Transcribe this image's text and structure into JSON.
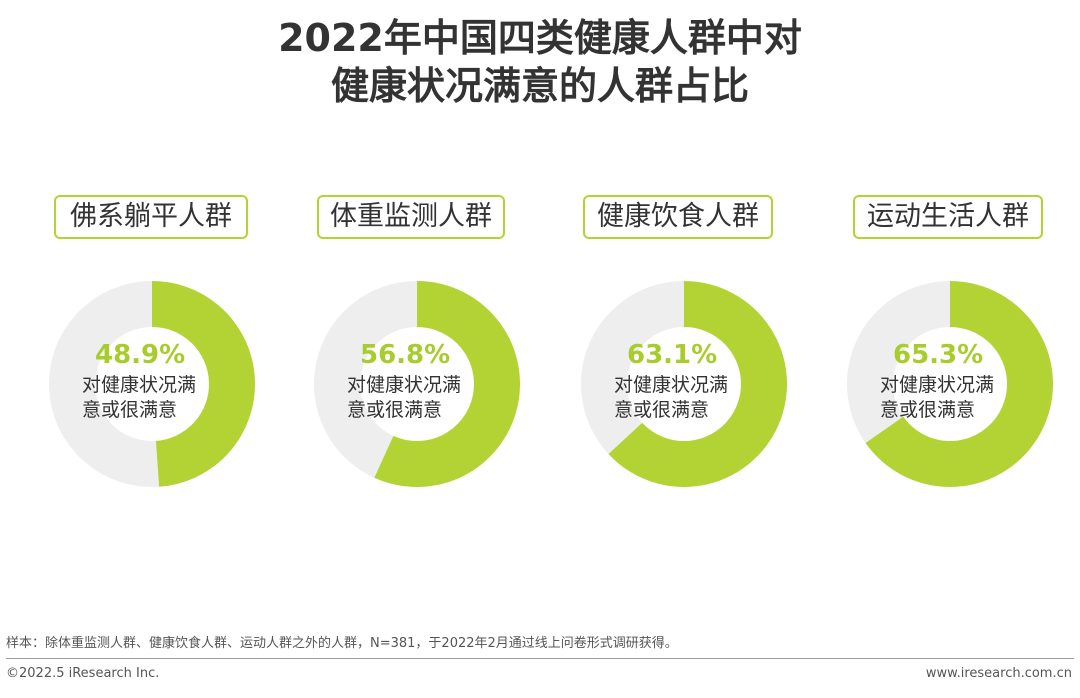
{
  "title": {
    "line1": "2022年中国四类健康人群中对",
    "line2": "健康状况满意的人群占比"
  },
  "chart_data": {
    "type": "pie",
    "subtype": "donut",
    "title": "2022年中国四类健康人群中对健康状况满意的人群占比",
    "value_caption": "对健康状况满意或很满意",
    "value_caption_lines": [
      "对健康状况满",
      "意或很满意"
    ],
    "colors": {
      "filled": "#b3d334",
      "remainder": "#eeeeee",
      "label_accent": "#a8cc2c",
      "label_border": "#b3d334"
    },
    "groups": [
      {
        "name": "佛系躺平人群",
        "value": 48.9,
        "value_label": "48.9%"
      },
      {
        "name": "体重监测人群",
        "value": 56.8,
        "value_label": "56.8%"
      },
      {
        "name": "健康饮食人群",
        "value": 63.1,
        "value_label": "63.1%"
      },
      {
        "name": "运动生活人群",
        "value": 65.3,
        "value_label": "65.3%"
      }
    ]
  },
  "note": "样本：除体重监测人群、健康饮食人群、运动人群之外的人群，N=381，于2022年2月通过线上问卷形式调研获得。",
  "footer": {
    "copyright": "©2022.5 iResearch Inc.",
    "website": "www.iresearch.com.cn"
  }
}
